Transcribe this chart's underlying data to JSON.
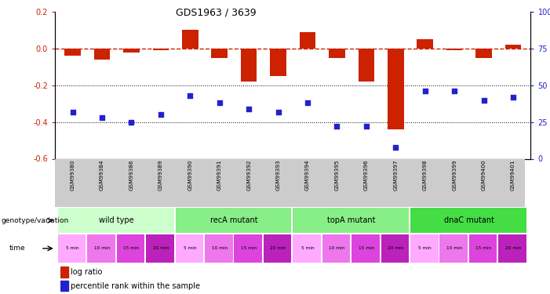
{
  "title": "GDS1963 / 3639",
  "samples": [
    "GSM99380",
    "GSM99384",
    "GSM99386",
    "GSM99389",
    "GSM99390",
    "GSM99391",
    "GSM99392",
    "GSM99393",
    "GSM99394",
    "GSM99395",
    "GSM99396",
    "GSM99397",
    "GSM99398",
    "GSM99399",
    "GSM99400",
    "GSM99401"
  ],
  "log_ratio": [
    -0.04,
    -0.06,
    -0.02,
    -0.01,
    0.1,
    -0.05,
    -0.18,
    -0.15,
    0.09,
    -0.05,
    -0.18,
    -0.44,
    0.05,
    -0.01,
    -0.05,
    0.02
  ],
  "pct_rank": [
    32,
    28,
    25,
    30,
    43,
    38,
    34,
    32,
    38,
    22,
    22,
    8,
    46,
    46,
    40,
    42
  ],
  "bar_color": "#cc2200",
  "dot_color": "#2222cc",
  "ref_line_color": "#cc2200",
  "dotted_line_color": "#000000",
  "ylim_left": [
    -0.6,
    0.2
  ],
  "ylim_right": [
    0,
    100
  ],
  "yticks_left": [
    0.2,
    0.0,
    -0.2,
    -0.4,
    -0.6
  ],
  "yticks_right": [
    100,
    75,
    50,
    25,
    0
  ],
  "genotype_groups": [
    {
      "label": "wild type",
      "start": 0,
      "end": 4,
      "color": "#ccffcc"
    },
    {
      "label": "recA mutant",
      "start": 4,
      "end": 8,
      "color": "#88ee88"
    },
    {
      "label": "topA mutant",
      "start": 8,
      "end": 12,
      "color": "#88ee88"
    },
    {
      "label": "dnaC mutant",
      "start": 12,
      "end": 16,
      "color": "#44dd44"
    }
  ],
  "time_colors_cycle": [
    "#ffaaff",
    "#ee77ee",
    "#dd44dd",
    "#bb22bb"
  ],
  "time_labels": [
    "5 min",
    "10 min",
    "15 min",
    "20 min",
    "5 min",
    "10 min",
    "15 min",
    "20 min",
    "5 min",
    "10 min",
    "15 min",
    "20 min",
    "5 min",
    "10 min",
    "15 min",
    "20 min"
  ],
  "bg_color": "#ffffff",
  "genotype_label": "genotype/variation",
  "time_label": "time",
  "legend_bar_label": "log ratio",
  "legend_dot_label": "percentile rank within the sample",
  "sample_bg_color": "#cccccc"
}
